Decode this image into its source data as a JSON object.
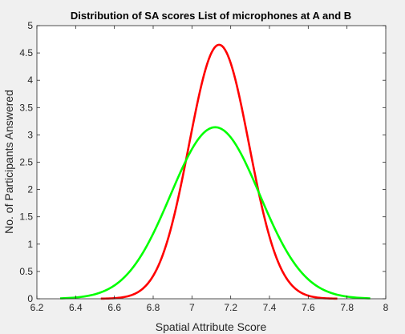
{
  "chart_data": {
    "type": "line",
    "title": "Distribution of SA scores List of microphones at A and B",
    "xlabel": "Spatial Attribute Score",
    "ylabel": "No. of Participants Answered",
    "xlim": [
      6.2,
      8
    ],
    "ylim": [
      0,
      5
    ],
    "xticks": [
      6.2,
      6.4,
      6.6,
      6.8,
      7,
      7.2,
      7.4,
      7.6,
      7.8,
      8
    ],
    "xtick_labels": [
      "6.2",
      "6.4",
      "6.6",
      "6.8",
      "7",
      "7.2",
      "7.4",
      "7.6",
      "7.8",
      "8"
    ],
    "yticks": [
      0,
      0.5,
      1,
      1.5,
      2,
      2.5,
      3,
      3.5,
      4,
      4.5,
      5
    ],
    "ytick_labels": [
      "0",
      "0.5",
      "1",
      "1.5",
      "2",
      "2.5",
      "3",
      "3.5",
      "4",
      "4.5",
      "5"
    ],
    "grid": false,
    "legend": "none",
    "series": [
      {
        "color": "#ff0000",
        "distribution": "normal",
        "peak": 4.65,
        "mean": 7.14,
        "sd": 0.155,
        "x_range": [
          6.53,
          7.75
        ]
      },
      {
        "color": "#00ff00",
        "distribution": "normal",
        "peak": 3.14,
        "mean": 7.12,
        "sd": 0.23,
        "x_range": [
          6.32,
          7.92
        ]
      }
    ]
  }
}
